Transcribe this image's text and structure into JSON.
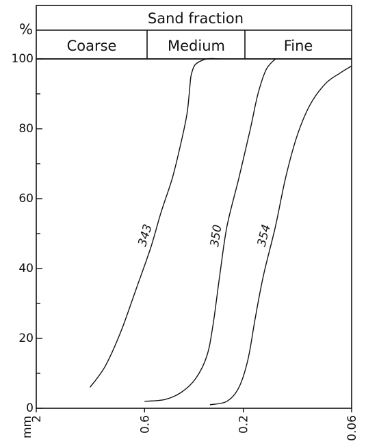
{
  "chart_data": {
    "type": "line",
    "header": {
      "title": "Sand fraction",
      "classes": [
        "Coarse",
        "Medium",
        "Fine"
      ]
    },
    "ylabel": "%",
    "ylim": [
      0,
      100
    ],
    "yticks": [
      "0",
      "20",
      "40",
      "60",
      "80",
      "100"
    ],
    "xlabel_unit": "mm",
    "x_scale": "log",
    "xlim": [
      2,
      0.06
    ],
    "xticks": [
      "2",
      "0.6",
      "0.2",
      "0.06"
    ],
    "grid": false,
    "series": [
      {
        "name": "343",
        "x": [
          1.1,
          0.93,
          0.78,
          0.66,
          0.56,
          0.5,
          0.44,
          0.4,
          0.375,
          0.365,
          0.36,
          0.355,
          0.34,
          0.3,
          0.26
        ],
        "y": [
          6,
          12,
          22,
          34,
          46,
          56,
          66,
          76,
          84,
          90,
          94,
          96,
          98.5,
          100,
          100
        ]
      },
      {
        "name": "350",
        "x": [
          0.6,
          0.48,
          0.4,
          0.34,
          0.3,
          0.28,
          0.26,
          0.24,
          0.21,
          0.185,
          0.17,
          0.155,
          0.14
        ],
        "y": [
          2,
          2.5,
          4.5,
          8.5,
          15,
          24,
          38,
          52,
          66,
          80,
          90,
          97,
          100
        ]
      },
      {
        "name": "354",
        "x": [
          0.29,
          0.24,
          0.21,
          0.19,
          0.175,
          0.16,
          0.14,
          0.125,
          0.11,
          0.095,
          0.08,
          0.068,
          0.06
        ],
        "y": [
          1,
          2,
          6,
          14,
          26,
          38,
          52,
          66,
          78,
          87,
          93,
          96,
          98
        ]
      }
    ]
  }
}
